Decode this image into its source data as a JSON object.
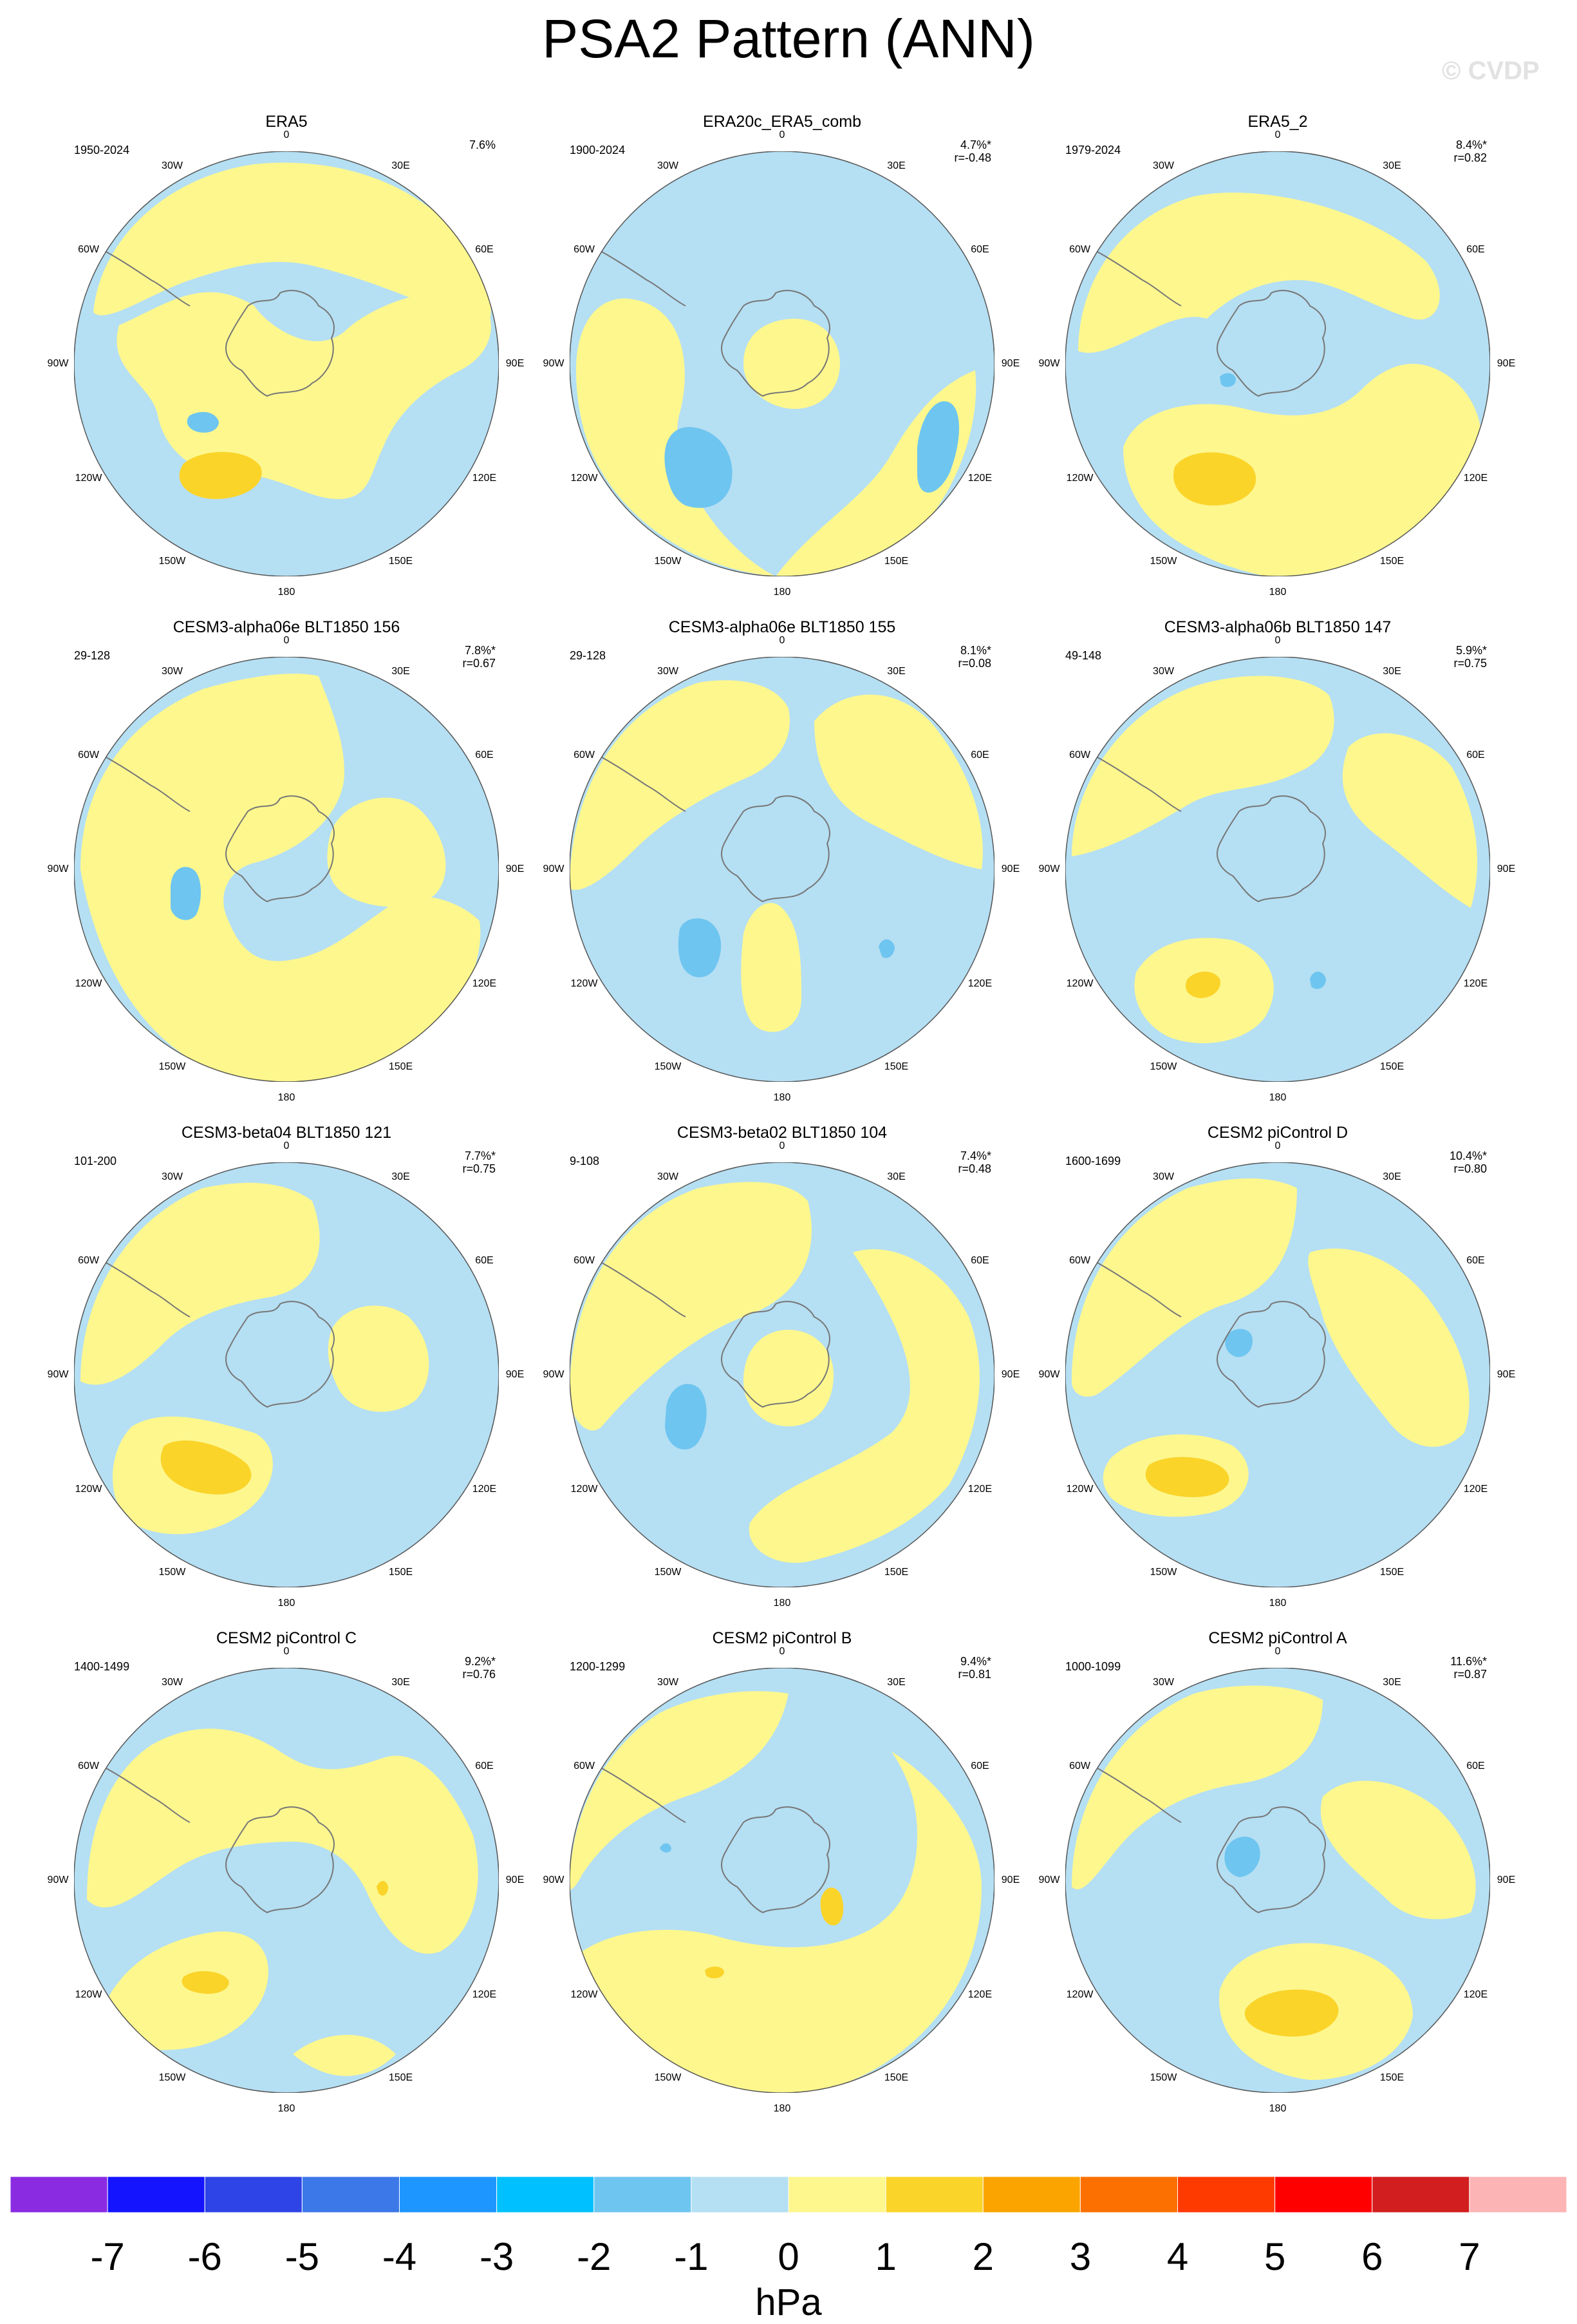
{
  "title": "PSA2 Pattern (ANN)",
  "watermark": "© CVDP",
  "lon_labels": [
    "0",
    "30E",
    "60E",
    "90E",
    "120E",
    "150E",
    "180",
    "150W",
    "120W",
    "90W",
    "60W",
    "30W"
  ],
  "palette": {
    "neg2": "#6ec5f0",
    "neg1": "#b5dff3",
    "pos0": "#fdf78e",
    "pos1": "#fbd42a",
    "coast": "#777777"
  },
  "panels": [
    {
      "title": "ERA5",
      "period": "1950-2024",
      "pct": "7.6%",
      "r": ""
    },
    {
      "title": "ERA20c_ERA5_comb",
      "period": "1900-2024",
      "pct": "4.7%*",
      "r": "r=-0.48"
    },
    {
      "title": "ERA5_2",
      "period": "1979-2024",
      "pct": "8.4%*",
      "r": "r=0.82"
    },
    {
      "title": "CESM3-alpha06e BLT1850 156",
      "period": "29-128",
      "pct": "7.8%*",
      "r": "r=0.67"
    },
    {
      "title": "CESM3-alpha06e BLT1850 155",
      "period": "29-128",
      "pct": "8.1%*",
      "r": "r=0.08"
    },
    {
      "title": "CESM3-alpha06b BLT1850 147",
      "period": "49-148",
      "pct": "5.9%*",
      "r": "r=0.75"
    },
    {
      "title": "CESM3-beta04 BLT1850 121",
      "period": "101-200",
      "pct": "7.7%*",
      "r": "r=0.75"
    },
    {
      "title": "CESM3-beta02 BLT1850 104",
      "period": "9-108",
      "pct": "7.4%*",
      "r": "r=0.48"
    },
    {
      "title": "CESM2 piControl D",
      "period": "1600-1699",
      "pct": "10.4%*",
      "r": "r=0.80"
    },
    {
      "title": "CESM2 piControl C",
      "period": "1400-1499",
      "pct": "9.2%*",
      "r": "r=0.76"
    },
    {
      "title": "CESM2 piControl B",
      "period": "1200-1299",
      "pct": "9.4%*",
      "r": "r=0.81"
    },
    {
      "title": "CESM2 piControl A",
      "period": "1000-1099",
      "pct": "11.6%*",
      "r": "r=0.87"
    }
  ],
  "chart_data": {
    "type": "heatmap",
    "colorbar": {
      "units": "hPa",
      "labels": [
        "-7",
        "-6",
        "-5",
        "-4",
        "-3",
        "-2",
        "-1",
        "0",
        "1",
        "2",
        "3",
        "4",
        "5",
        "6",
        "7"
      ],
      "colors": [
        "#8a2be2",
        "#1414ff",
        "#2e44e6",
        "#3c78e8",
        "#1e96ff",
        "#00c0ff",
        "#6ec5f0",
        "#b5dff3",
        "#fdf78e",
        "#fbd42a",
        "#fba400",
        "#fb7000",
        "#ff3a00",
        "#ff0000",
        "#d21e1e",
        "#fdb4b4"
      ]
    }
  }
}
